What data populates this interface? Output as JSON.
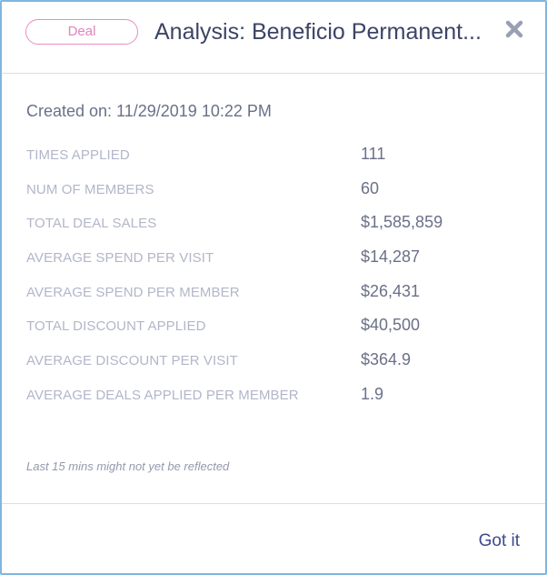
{
  "header": {
    "badge": "Deal",
    "title": "Analysis: Beneficio Permanent...",
    "close_icon": "close-icon"
  },
  "created": "Created on: 11/29/2019 10:22 PM",
  "stats": [
    {
      "label": "TIMES APPLIED",
      "value": "111"
    },
    {
      "label": "NUM OF MEMBERS",
      "value": "60"
    },
    {
      "label": "TOTAL DEAL SALES",
      "value": "$1,585,859"
    },
    {
      "label": "AVERAGE SPEND PER VISIT",
      "value": "$14,287"
    },
    {
      "label": "AVERAGE SPEND PER MEMBER",
      "value": "$26,431"
    },
    {
      "label": "TOTAL DISCOUNT APPLIED",
      "value": "$40,500"
    },
    {
      "label": "AVERAGE DISCOUNT PER VISIT",
      "value": "$364.9"
    },
    {
      "label": "AVERAGE DEALS APPLIED PER MEMBER",
      "value": "1.9"
    }
  ],
  "note": "Last 15 mins might not yet be reflected",
  "footer": {
    "got_it": "Got it"
  },
  "colors": {
    "border": "#7fb6e0",
    "badge": "#e184bf",
    "title": "#3d4466",
    "label": "#b2b6c9",
    "button": "#3c4a8c"
  }
}
